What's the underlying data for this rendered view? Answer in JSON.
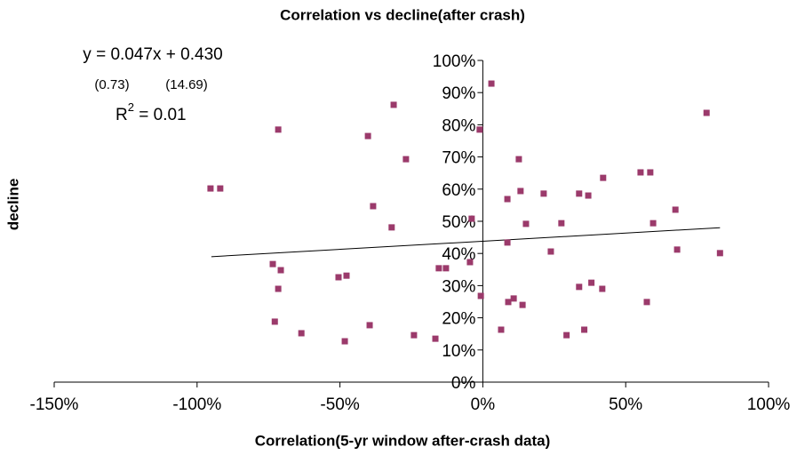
{
  "chart_data": {
    "type": "scatter",
    "title": "Correlation vs decline(after crash)",
    "xlabel": "Correlation(5-yr window after-crash data)",
    "ylabel": "decline",
    "color": "#9b3a6b",
    "annotations": {
      "equation": "y = 0.047x + 0.430",
      "se_slope": "(0.73)",
      "se_intercept": "(14.69)",
      "r2": {
        "base": "R",
        "sup": "2",
        "rest": " = 0.01"
      }
    },
    "trendline": {
      "x": [
        -95,
        83
      ],
      "y": [
        39,
        48
      ]
    },
    "xlim": [
      -150,
      100
    ],
    "xticks": [
      {
        "value": -150,
        "label": "-150%"
      },
      {
        "value": -100,
        "label": "-100%"
      },
      {
        "value": -50,
        "label": "-50%"
      },
      {
        "value": 0,
        "label": "0%"
      },
      {
        "value": 50,
        "label": "50%"
      },
      {
        "value": 100,
        "label": "100%"
      }
    ],
    "ylim": [
      0,
      100
    ],
    "yticks": [
      {
        "value": 0,
        "label": "0%"
      },
      {
        "value": 10,
        "label": "10%"
      },
      {
        "value": 20,
        "label": "20%"
      },
      {
        "value": 30,
        "label": "30%"
      },
      {
        "value": 40,
        "label": "40%"
      },
      {
        "value": 50,
        "label": "50%"
      },
      {
        "value": 60,
        "label": "60%"
      },
      {
        "value": 70,
        "label": "70%"
      },
      {
        "value": 80,
        "label": "80%"
      },
      {
        "value": 90,
        "label": "90%"
      },
      {
        "value": 100,
        "label": "100%"
      }
    ],
    "x": [
      -95.3,
      -91.9,
      -71.6,
      -31.2,
      -40.2,
      -26.9,
      -38.4,
      -31.9,
      -73.5,
      -70.7,
      -71.6,
      -50.5,
      -47.7,
      -72.8,
      -63.5,
      -48.3,
      -39.6,
      -24.1,
      -16.6,
      -15.4,
      -12.9,
      -4.5,
      -3.9,
      -1.1,
      3.0,
      -0.7,
      8.6,
      12.6,
      13.2,
      15.1,
      8.6,
      8.9,
      10.8,
      13.9,
      6.4,
      21.3,
      23.8,
      27.5,
      33.7,
      36.9,
      42.1,
      55.2,
      58.6,
      59.6,
      67.4,
      68.0,
      78.3,
      83.0,
      33.7,
      38.0,
      41.8,
      57.4,
      35.5,
      29.3
    ],
    "y": [
      60.2,
      60.2,
      78.5,
      86.2,
      76.5,
      69.3,
      54.7,
      48.1,
      36.7,
      34.8,
      29.0,
      32.6,
      33.1,
      18.8,
      15.2,
      12.7,
      17.7,
      14.6,
      13.5,
      35.4,
      35.4,
      37.3,
      50.8,
      78.5,
      92.8,
      26.8,
      56.9,
      69.3,
      59.4,
      49.2,
      43.4,
      24.9,
      26.0,
      24.0,
      16.3,
      58.6,
      40.6,
      49.4,
      58.6,
      58.0,
      63.5,
      65.2,
      65.2,
      49.4,
      53.6,
      41.2,
      83.7,
      40.1,
      29.6,
      30.9,
      29.0,
      24.9,
      16.3,
      14.6
    ]
  }
}
